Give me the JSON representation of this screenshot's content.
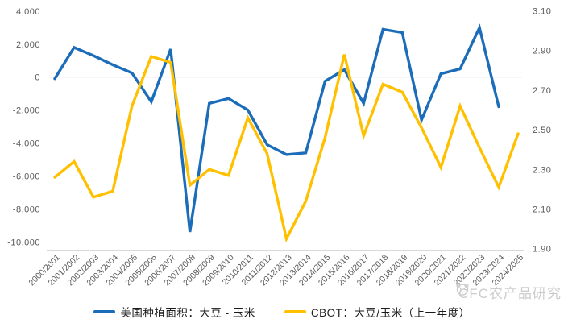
{
  "chart_data": {
    "type": "line",
    "categories": [
      "2000/2001",
      "2001/2002",
      "2002/2003",
      "2003/2004",
      "2004/2005",
      "2005/2006",
      "2006/2007",
      "2007/2008",
      "2008/2009",
      "2009/2010",
      "2010/2011",
      "2011/2012",
      "2012/2013",
      "2013/2014",
      "2014/2015",
      "2015/2016",
      "2016/2017",
      "2017/2018",
      "2018/2019",
      "2019/2020",
      "2020/2021",
      "2021/2022",
      "2022/2023",
      "2023/2024",
      "2024/2025"
    ],
    "series": [
      {
        "name": "美国种植面积：大豆 - 玉米",
        "axis": "left",
        "color": "#1b6cb9",
        "values": [
          -100,
          1800,
          1300,
          750,
          250,
          -1500,
          1700,
          -9400,
          -1600,
          -1300,
          -2000,
          -4100,
          -4700,
          -4600,
          -250,
          450,
          -1600,
          2900,
          2700,
          -2600,
          200,
          500,
          3000,
          -1800,
          null
        ]
      },
      {
        "name": "CBOT：大豆/玉米（上一年度）",
        "axis": "right",
        "color": "#ffc000",
        "values": [
          2.26,
          2.34,
          2.16,
          2.19,
          2.62,
          2.87,
          2.84,
          2.22,
          2.3,
          2.27,
          2.56,
          2.38,
          1.95,
          2.14,
          2.46,
          2.88,
          2.47,
          2.73,
          2.69,
          2.51,
          2.31,
          2.62,
          2.41,
          2.21,
          2.48
        ]
      }
    ],
    "left_axis": {
      "tick_labels": [
        "4,000",
        "2,000",
        "0",
        "-2,000",
        "-4,000",
        "-6,000",
        "-8,000",
        "-10,000"
      ],
      "tick_values": [
        4000,
        2000,
        0,
        -2000,
        -4000,
        -6000,
        -8000,
        -10000
      ],
      "min": -10000,
      "max": 4000
    },
    "right_axis": {
      "tick_labels": [
        "3.10",
        "2.90",
        "2.70",
        "2.50",
        "2.30",
        "2.10",
        "1.90"
      ],
      "tick_values": [
        3.1,
        2.9,
        2.7,
        2.5,
        2.3,
        2.1,
        1.9
      ],
      "min": 1.9,
      "max": 3.1
    },
    "gridlines": "zero-line-only",
    "legend_position": "bottom",
    "title": ""
  },
  "legend": {
    "items": [
      {
        "label": "美国种植面积：大豆 - 玉米",
        "color": "#1b6cb9"
      },
      {
        "label": "CBOT：大豆/玉米（上一年度）",
        "color": "#ffc000"
      }
    ]
  },
  "watermark": {
    "text": "CFC农产品研究"
  },
  "colors": {
    "series_blue": "#1b6cb9",
    "series_yellow": "#ffc000",
    "axis_text": "#595959",
    "gridline": "#d9d9d9",
    "legend_text": "#1a1a1a"
  }
}
